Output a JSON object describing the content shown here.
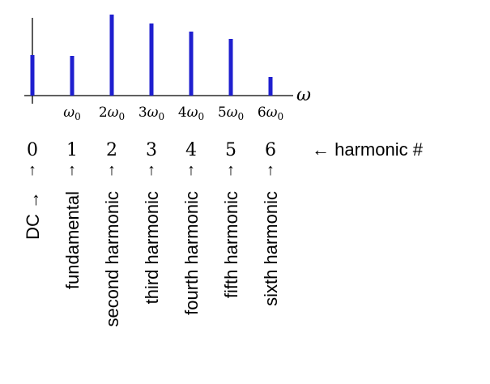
{
  "chart_data": {
    "type": "bar",
    "x_axis_symbol": "ω",
    "bar_color": "#1f1fcf",
    "categories": [
      "",
      "ω0",
      "2ω0",
      "3ω0",
      "4ω0",
      "5ω0",
      "6ω0"
    ],
    "tick_labels": [
      {
        "coef": "",
        "sub": ""
      },
      {
        "coef": "",
        "sub": "0"
      },
      {
        "coef": "2",
        "sub": "0"
      },
      {
        "coef": "3",
        "sub": "0"
      },
      {
        "coef": "4",
        "sub": "0"
      },
      {
        "coef": "5",
        "sub": "0"
      },
      {
        "coef": "6",
        "sub": "0"
      }
    ],
    "values": [
      0.5,
      0.49,
      1.0,
      0.89,
      0.79,
      0.7,
      0.23
    ],
    "ylim": [
      0,
      1
    ]
  },
  "harmonics": {
    "numbers": [
      "0",
      "1",
      "2",
      "3",
      "4",
      "5",
      "6"
    ],
    "arrow": "↑",
    "header_label": "← harmonic #",
    "names": [
      "DC →",
      "fundamental",
      "second harmonic",
      "third harmonic",
      "fourth harmonic",
      "fifth harmonic",
      "sixth harmonic"
    ]
  }
}
